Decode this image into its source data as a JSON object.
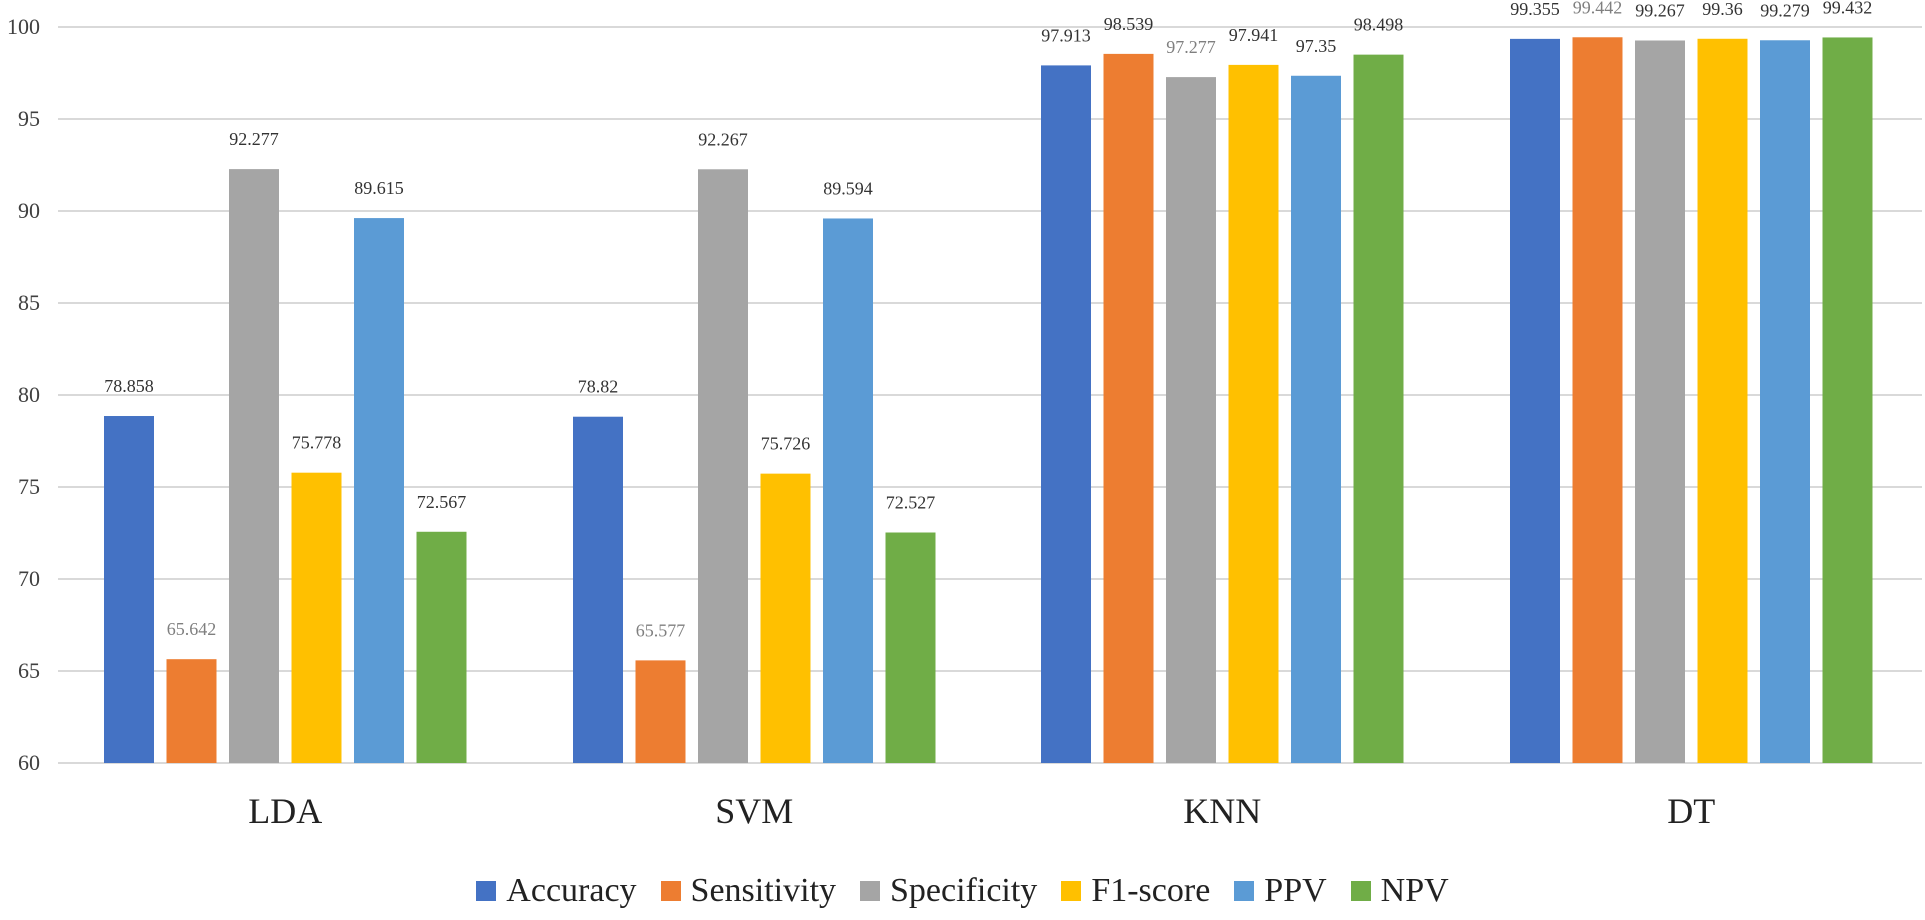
{
  "chart_data": {
    "type": "bar",
    "title": "",
    "xlabel": "",
    "ylabel": "",
    "ylim": [
      60,
      100
    ],
    "yticks": [
      "60",
      "65",
      "70",
      "75",
      "80",
      "85",
      "90",
      "95",
      "100"
    ],
    "grid": true,
    "legend_position": "bottom",
    "categories": [
      "LDA",
      "SVM",
      "KNN",
      "DT"
    ],
    "series": [
      {
        "name": "Accuracy",
        "color": "#4472c4",
        "values": [
          78.858,
          78.82,
          97.913,
          99.355
        ],
        "labels": [
          "78.858",
          "78.82",
          "97.913",
          "99.355"
        ]
      },
      {
        "name": "Sensitivity",
        "color": "#ed7d31",
        "values": [
          65.642,
          65.577,
          98.539,
          99.442
        ],
        "labels": [
          "65.642",
          "65.577",
          "98.539",
          "99.442"
        ]
      },
      {
        "name": "Specificity",
        "color": "#a5a5a5",
        "values": [
          92.277,
          92.267,
          97.277,
          99.267
        ],
        "labels": [
          "92.277",
          "92.267",
          "97.277",
          "99.267"
        ]
      },
      {
        "name": "F1-score",
        "color": "#ffc000",
        "values": [
          75.778,
          75.726,
          97.941,
          99.36
        ],
        "labels": [
          "75.778",
          "75.726",
          "97.941",
          "99.36"
        ]
      },
      {
        "name": "PPV",
        "color": "#5b9bd5",
        "values": [
          89.615,
          89.594,
          97.35,
          99.279
        ],
        "labels": [
          "89.615",
          "89.594",
          "97.35",
          "99.279"
        ]
      },
      {
        "name": "NPV",
        "color": "#70ad47",
        "values": [
          72.567,
          72.527,
          98.498,
          99.432
        ],
        "labels": [
          "72.567",
          "72.527",
          "98.498",
          "99.432"
        ]
      }
    ],
    "label_colors": {
      "default": "#333333",
      "muted": "#7f7f7f"
    }
  }
}
